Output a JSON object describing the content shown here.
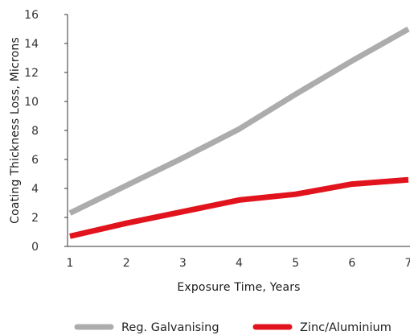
{
  "chart_data": {
    "type": "line",
    "xlabel": "Exposure Time, Years",
    "ylabel": "Coating Thickness Loss, Microns",
    "xlim": [
      1,
      7
    ],
    "ylim": [
      0,
      16
    ],
    "x_ticks": [
      "1",
      "2",
      "3",
      "4",
      "5",
      "6",
      "7"
    ],
    "y_ticks": [
      "0",
      "2",
      "4",
      "6",
      "8",
      "10",
      "12",
      "14",
      "16"
    ],
    "x": [
      1,
      2,
      3,
      4,
      5,
      6,
      7
    ],
    "series": [
      {
        "name": "Reg. Galvanising",
        "color": "#acacac",
        "values": [
          2.3,
          4.2,
          6.1,
          8.1,
          10.5,
          12.8,
          15.0
        ]
      },
      {
        "name": "Zinc/Aluminium",
        "color": "#e1141e",
        "values": [
          0.7,
          1.6,
          2.4,
          3.2,
          3.6,
          4.3,
          4.6
        ]
      }
    ],
    "legend_position": "bottom",
    "grid": false
  }
}
